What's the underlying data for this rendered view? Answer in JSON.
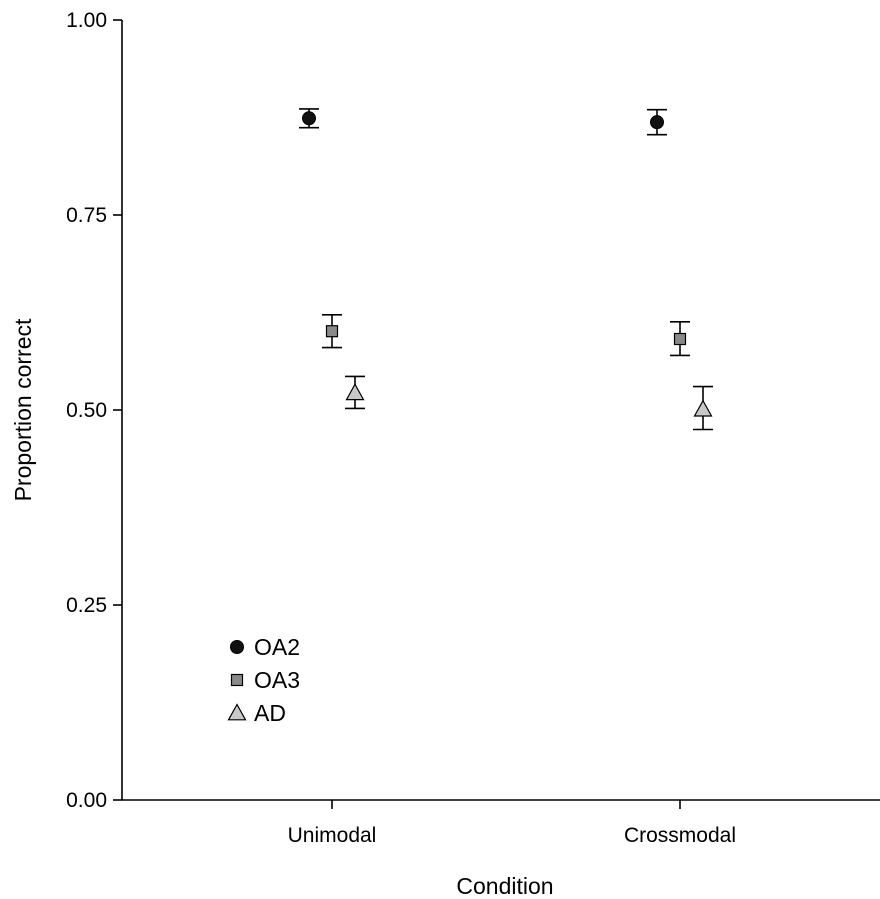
{
  "chart_data": {
    "type": "scatter",
    "xlabel": "Condition",
    "ylabel": "Proportion correct",
    "categories": [
      "Unimodal",
      "Crossmodal"
    ],
    "ylim": [
      0,
      1
    ],
    "yticks": [
      "0.00",
      "0.25",
      "0.50",
      "0.75",
      "1.00"
    ],
    "grid": false,
    "legend_position": "bottom-left",
    "series": [
      {
        "name": "OA2",
        "marker": "circle",
        "color": "#111111",
        "values": [
          0.874,
          0.869
        ],
        "err_low": [
          0.862,
          0.853
        ],
        "err_high": [
          0.886,
          0.885
        ]
      },
      {
        "name": "OA3",
        "marker": "square",
        "color": "#8a8a8a",
        "values": [
          0.601,
          0.591
        ],
        "err_low": [
          0.58,
          0.57
        ],
        "err_high": [
          0.622,
          0.613
        ]
      },
      {
        "name": "AD",
        "marker": "triangle",
        "color": "#c8c8c8",
        "values": [
          0.522,
          0.501
        ],
        "err_low": [
          0.502,
          0.475
        ],
        "err_high": [
          0.543,
          0.53
        ]
      }
    ]
  }
}
